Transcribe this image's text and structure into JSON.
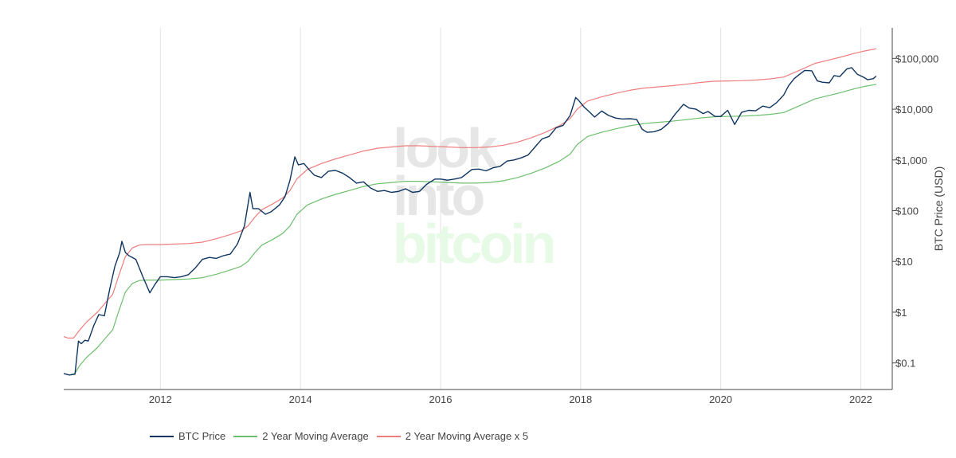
{
  "chart_data": {
    "type": "line",
    "watermark": {
      "line1": "look",
      "line2": "into",
      "line3": "bitcoin"
    },
    "xlabel": "",
    "ylabel": "BTC Price (USD)",
    "ylog": true,
    "grid_x": true,
    "legend_position": "bottom",
    "x_ticks": [
      "2012",
      "2014",
      "2016",
      "2018",
      "2020",
      "2022"
    ],
    "y_ticks": [
      {
        "value": 0.1,
        "label": "$0.1"
      },
      {
        "value": 1,
        "label": "$1"
      },
      {
        "value": 10,
        "label": "$10"
      },
      {
        "value": 100,
        "label": "$100"
      },
      {
        "value": 1000,
        "label": "$1,000"
      },
      {
        "value": 10000,
        "label": "$10,000"
      },
      {
        "value": 100000,
        "label": "$100,000"
      }
    ],
    "xlim": [
      2010.62,
      2022.45
    ],
    "ylim": [
      0.03,
      400000
    ],
    "series": [
      {
        "name": "BTC Price",
        "color": "#0e3561",
        "points": [
          [
            2010.62,
            0.062
          ],
          [
            2010.7,
            0.058
          ],
          [
            2010.78,
            0.06
          ],
          [
            2010.83,
            0.27
          ],
          [
            2010.87,
            0.24
          ],
          [
            2010.92,
            0.28
          ],
          [
            2010.97,
            0.27
          ],
          [
            2011.05,
            0.55
          ],
          [
            2011.12,
            0.9
          ],
          [
            2011.2,
            0.85
          ],
          [
            2011.28,
            3.0
          ],
          [
            2011.35,
            8.0
          ],
          [
            2011.42,
            15
          ],
          [
            2011.45,
            25
          ],
          [
            2011.5,
            15
          ],
          [
            2011.55,
            13
          ],
          [
            2011.65,
            11
          ],
          [
            2011.75,
            5
          ],
          [
            2011.85,
            2.4
          ],
          [
            2011.92,
            3.5
          ],
          [
            2012.0,
            5
          ],
          [
            2012.1,
            5
          ],
          [
            2012.2,
            4.8
          ],
          [
            2012.3,
            5
          ],
          [
            2012.4,
            5.5
          ],
          [
            2012.5,
            7.5
          ],
          [
            2012.6,
            11
          ],
          [
            2012.7,
            12
          ],
          [
            2012.8,
            11.5
          ],
          [
            2012.9,
            13
          ],
          [
            2013.0,
            14
          ],
          [
            2013.1,
            22
          ],
          [
            2013.2,
            50
          ],
          [
            2013.28,
            230
          ],
          [
            2013.32,
            110
          ],
          [
            2013.4,
            110
          ],
          [
            2013.5,
            85
          ],
          [
            2013.58,
            95
          ],
          [
            2013.7,
            130
          ],
          [
            2013.78,
            190
          ],
          [
            2013.85,
            400
          ],
          [
            2013.92,
            1150
          ],
          [
            2013.97,
            800
          ],
          [
            2014.05,
            850
          ],
          [
            2014.12,
            650
          ],
          [
            2014.2,
            500
          ],
          [
            2014.3,
            450
          ],
          [
            2014.4,
            600
          ],
          [
            2014.5,
            620
          ],
          [
            2014.6,
            550
          ],
          [
            2014.7,
            450
          ],
          [
            2014.8,
            350
          ],
          [
            2014.9,
            370
          ],
          [
            2015.0,
            280
          ],
          [
            2015.1,
            240
          ],
          [
            2015.2,
            250
          ],
          [
            2015.3,
            230
          ],
          [
            2015.4,
            240
          ],
          [
            2015.5,
            270
          ],
          [
            2015.6,
            230
          ],
          [
            2015.7,
            240
          ],
          [
            2015.8,
            330
          ],
          [
            2015.92,
            420
          ],
          [
            2016.0,
            420
          ],
          [
            2016.1,
            400
          ],
          [
            2016.2,
            420
          ],
          [
            2016.3,
            450
          ],
          [
            2016.45,
            650
          ],
          [
            2016.55,
            660
          ],
          [
            2016.65,
            610
          ],
          [
            2016.75,
            700
          ],
          [
            2016.85,
            750
          ],
          [
            2016.95,
            950
          ],
          [
            2017.05,
            1000
          ],
          [
            2017.15,
            1100
          ],
          [
            2017.25,
            1250
          ],
          [
            2017.35,
            1800
          ],
          [
            2017.45,
            2600
          ],
          [
            2017.55,
            2900
          ],
          [
            2017.65,
            4300
          ],
          [
            2017.75,
            4800
          ],
          [
            2017.85,
            7500
          ],
          [
            2017.93,
            17000
          ],
          [
            2017.97,
            15000
          ],
          [
            2018.05,
            11000
          ],
          [
            2018.12,
            9000
          ],
          [
            2018.2,
            7000
          ],
          [
            2018.3,
            9200
          ],
          [
            2018.4,
            7500
          ],
          [
            2018.5,
            6700
          ],
          [
            2018.6,
            6400
          ],
          [
            2018.7,
            6500
          ],
          [
            2018.8,
            6300
          ],
          [
            2018.88,
            4000
          ],
          [
            2018.95,
            3500
          ],
          [
            2019.05,
            3600
          ],
          [
            2019.15,
            4000
          ],
          [
            2019.25,
            5200
          ],
          [
            2019.35,
            8000
          ],
          [
            2019.47,
            12500
          ],
          [
            2019.55,
            10500
          ],
          [
            2019.65,
            10000
          ],
          [
            2019.75,
            8200
          ],
          [
            2019.82,
            9000
          ],
          [
            2019.92,
            7200
          ],
          [
            2020.0,
            7200
          ],
          [
            2020.1,
            9500
          ],
          [
            2020.2,
            5000
          ],
          [
            2020.3,
            8700
          ],
          [
            2020.4,
            9500
          ],
          [
            2020.5,
            9300
          ],
          [
            2020.6,
            11500
          ],
          [
            2020.7,
            10700
          ],
          [
            2020.8,
            13500
          ],
          [
            2020.9,
            19000
          ],
          [
            2020.97,
            29000
          ],
          [
            2021.05,
            40000
          ],
          [
            2021.12,
            48000
          ],
          [
            2021.2,
            58000
          ],
          [
            2021.3,
            57000
          ],
          [
            2021.38,
            36000
          ],
          [
            2021.45,
            34000
          ],
          [
            2021.55,
            33000
          ],
          [
            2021.62,
            46000
          ],
          [
            2021.7,
            44000
          ],
          [
            2021.8,
            62000
          ],
          [
            2021.87,
            66000
          ],
          [
            2021.95,
            49000
          ],
          [
            2022.05,
            42000
          ],
          [
            2022.1,
            38000
          ],
          [
            2022.18,
            40000
          ],
          [
            2022.22,
            45000
          ]
        ]
      },
      {
        "name": "2 Year Moving Average",
        "color": "#6cbf6c",
        "points": [
          [
            2010.7,
            0.058
          ],
          [
            2010.78,
            0.062
          ],
          [
            2010.85,
            0.09
          ],
          [
            2010.95,
            0.13
          ],
          [
            2011.1,
            0.2
          ],
          [
            2011.25,
            0.35
          ],
          [
            2011.32,
            0.45
          ],
          [
            2011.4,
            1.0
          ],
          [
            2011.5,
            2.5
          ],
          [
            2011.6,
            3.7
          ],
          [
            2011.7,
            4.2
          ],
          [
            2011.8,
            4.3
          ],
          [
            2012.0,
            4.3
          ],
          [
            2012.2,
            4.4
          ],
          [
            2012.4,
            4.5
          ],
          [
            2012.6,
            4.8
          ],
          [
            2012.8,
            5.6
          ],
          [
            2013.0,
            6.8
          ],
          [
            2013.15,
            8.0
          ],
          [
            2013.25,
            10
          ],
          [
            2013.35,
            15
          ],
          [
            2013.45,
            21
          ],
          [
            2013.6,
            27
          ],
          [
            2013.75,
            36
          ],
          [
            2013.85,
            50
          ],
          [
            2013.95,
            85
          ],
          [
            2014.1,
            130
          ],
          [
            2014.3,
            170
          ],
          [
            2014.5,
            210
          ],
          [
            2014.7,
            250
          ],
          [
            2014.9,
            300
          ],
          [
            2015.1,
            340
          ],
          [
            2015.3,
            360
          ],
          [
            2015.5,
            380
          ],
          [
            2015.7,
            380
          ],
          [
            2015.9,
            370
          ],
          [
            2016.1,
            360
          ],
          [
            2016.3,
            350
          ],
          [
            2016.5,
            350
          ],
          [
            2016.7,
            360
          ],
          [
            2016.9,
            390
          ],
          [
            2017.1,
            450
          ],
          [
            2017.3,
            550
          ],
          [
            2017.5,
            700
          ],
          [
            2017.7,
            950
          ],
          [
            2017.85,
            1300
          ],
          [
            2017.95,
            2000
          ],
          [
            2018.1,
            2900
          ],
          [
            2018.3,
            3500
          ],
          [
            2018.5,
            4100
          ],
          [
            2018.7,
            4700
          ],
          [
            2018.9,
            5200
          ],
          [
            2019.1,
            5500
          ],
          [
            2019.3,
            5800
          ],
          [
            2019.5,
            6200
          ],
          [
            2019.7,
            6700
          ],
          [
            2019.9,
            7100
          ],
          [
            2020.1,
            7200
          ],
          [
            2020.3,
            7300
          ],
          [
            2020.5,
            7500
          ],
          [
            2020.7,
            7900
          ],
          [
            2020.9,
            8600
          ],
          [
            2021.05,
            10500
          ],
          [
            2021.2,
            13000
          ],
          [
            2021.35,
            16000
          ],
          [
            2021.5,
            18000
          ],
          [
            2021.7,
            21000
          ],
          [
            2021.9,
            25000
          ],
          [
            2022.05,
            28000
          ],
          [
            2022.22,
            31000
          ]
        ]
      },
      {
        "name": "2 Year Moving Average x 5",
        "color": "#ee7d7d",
        "points": [
          [
            2010.62,
            0.33
          ],
          [
            2010.68,
            0.31
          ],
          [
            2010.76,
            0.31
          ],
          [
            2010.85,
            0.45
          ],
          [
            2010.95,
            0.65
          ],
          [
            2011.1,
            1.0
          ],
          [
            2011.25,
            1.75
          ],
          [
            2011.32,
            2.25
          ],
          [
            2011.4,
            5
          ],
          [
            2011.5,
            12.5
          ],
          [
            2011.6,
            18.5
          ],
          [
            2011.7,
            21
          ],
          [
            2011.8,
            21.5
          ],
          [
            2012.0,
            21.5
          ],
          [
            2012.2,
            22
          ],
          [
            2012.4,
            22.5
          ],
          [
            2012.6,
            24
          ],
          [
            2012.8,
            28
          ],
          [
            2013.0,
            34
          ],
          [
            2013.15,
            40
          ],
          [
            2013.25,
            50
          ],
          [
            2013.35,
            75
          ],
          [
            2013.45,
            105
          ],
          [
            2013.6,
            135
          ],
          [
            2013.75,
            180
          ],
          [
            2013.85,
            250
          ],
          [
            2013.95,
            425
          ],
          [
            2014.1,
            650
          ],
          [
            2014.3,
            850
          ],
          [
            2014.5,
            1050
          ],
          [
            2014.7,
            1250
          ],
          [
            2014.9,
            1500
          ],
          [
            2015.1,
            1700
          ],
          [
            2015.3,
            1800
          ],
          [
            2015.5,
            1900
          ],
          [
            2015.7,
            1900
          ],
          [
            2015.9,
            1850
          ],
          [
            2016.1,
            1800
          ],
          [
            2016.3,
            1750
          ],
          [
            2016.5,
            1750
          ],
          [
            2016.7,
            1800
          ],
          [
            2016.9,
            1950
          ],
          [
            2017.1,
            2250
          ],
          [
            2017.3,
            2750
          ],
          [
            2017.5,
            3500
          ],
          [
            2017.7,
            4750
          ],
          [
            2017.85,
            6500
          ],
          [
            2017.95,
            10000
          ],
          [
            2018.1,
            14500
          ],
          [
            2018.3,
            17500
          ],
          [
            2018.5,
            20500
          ],
          [
            2018.7,
            23500
          ],
          [
            2018.9,
            26000
          ],
          [
            2019.1,
            27500
          ],
          [
            2019.3,
            29000
          ],
          [
            2019.5,
            31000
          ],
          [
            2019.7,
            33500
          ],
          [
            2019.9,
            35500
          ],
          [
            2020.1,
            36000
          ],
          [
            2020.3,
            36500
          ],
          [
            2020.5,
            37500
          ],
          [
            2020.7,
            39500
          ],
          [
            2020.9,
            43000
          ],
          [
            2021.05,
            52500
          ],
          [
            2021.2,
            65000
          ],
          [
            2021.35,
            80000
          ],
          [
            2021.5,
            90000
          ],
          [
            2021.7,
            105000
          ],
          [
            2021.9,
            125000
          ],
          [
            2022.05,
            140000
          ],
          [
            2022.22,
            155000
          ]
        ]
      }
    ]
  }
}
